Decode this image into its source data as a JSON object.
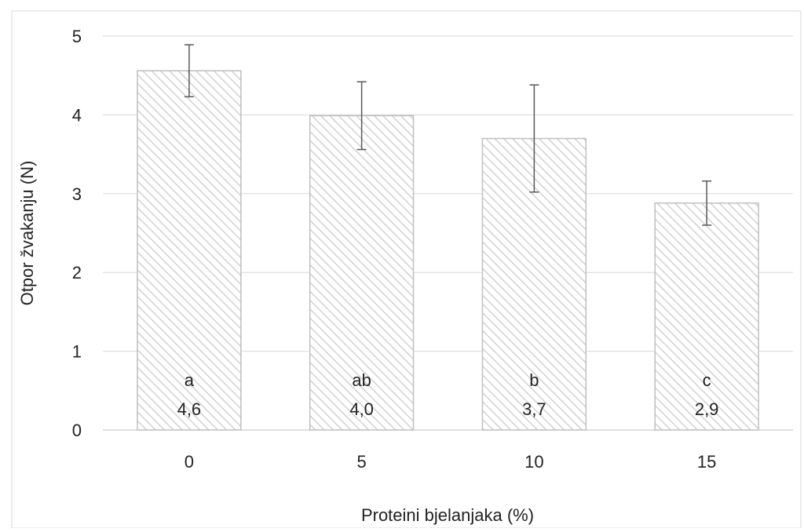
{
  "chart_data": {
    "type": "bar",
    "xlabel": "Proteini bjelanjaka (%)",
    "ylabel": "Otpor žvakanju (N)",
    "categories": [
      "0",
      "5",
      "10",
      "15"
    ],
    "series": [
      {
        "values": [
          4.56,
          3.99,
          3.7,
          2.88
        ],
        "error": [
          0.33,
          0.43,
          0.68,
          0.28
        ]
      }
    ],
    "significance_letters": [
      "a",
      "ab",
      "b",
      "c"
    ],
    "value_labels": [
      "4,6",
      "4,0",
      "3,7",
      "2,9"
    ],
    "ylim": [
      0,
      5
    ],
    "yticks": [
      0,
      1,
      2,
      3,
      4,
      5
    ],
    "grid": true,
    "legend": "none",
    "colors": {
      "bar_fill": "#ffffff",
      "bar_hatch": "#c9c9c9",
      "bar_border": "#bfbfbf",
      "gridline": "#d9d9d9",
      "error_bar": "#595959"
    }
  }
}
